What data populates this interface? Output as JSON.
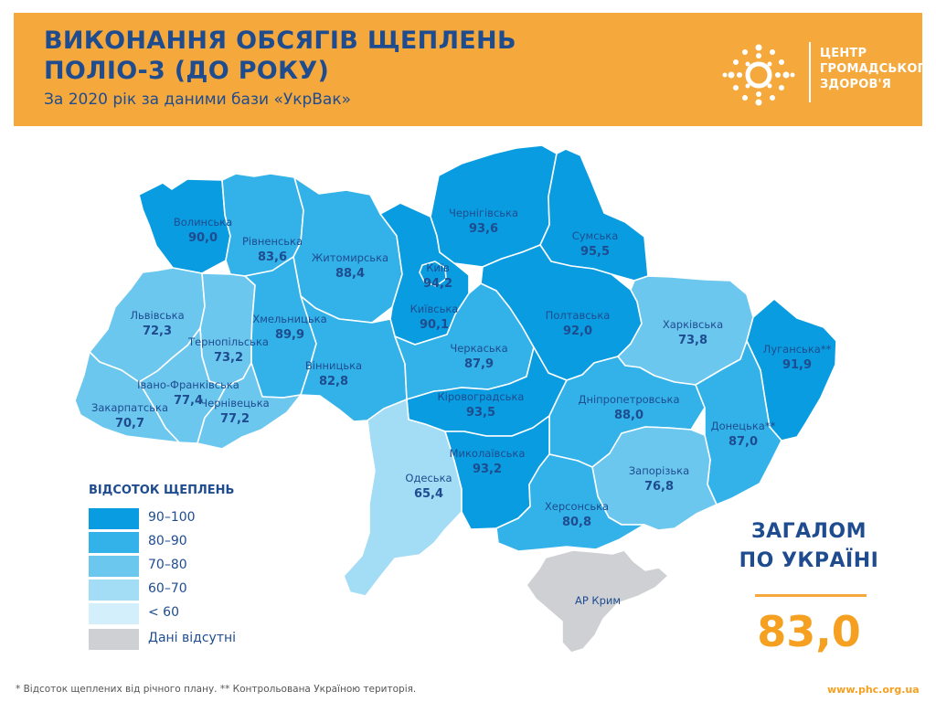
{
  "header": {
    "title_line1": "ВИКОНАННЯ ОБСЯГІВ ЩЕПЛЕНЬ",
    "title_line2": "ПОЛІО-3 (ДО РОКУ)",
    "subtitle": "За 2020 рік за даними бази «УкрВак»",
    "logo_line1": "ЦЕНТР",
    "logo_line2": "ГРОМАДСЬКОГО",
    "logo_line3": "ЗДОРОВ'Я"
  },
  "colors": {
    "header_bg": "#f5a83b",
    "title": "#1e4c8f",
    "accent": "#f5a021",
    "bin_90_100": "#0a9ce0",
    "bin_80_90": "#32b2e8",
    "bin_70_80": "#6cc7ef",
    "bin_60_70": "#a3dcf5",
    "bin_lt60": "#d3effb",
    "no_data": "#cfd0d3"
  },
  "legend": {
    "title": "ВІДСОТОК ЩЕПЛЕНЬ",
    "items": [
      {
        "label": "90–100",
        "color": "#0a9ce0"
      },
      {
        "label": "80–90",
        "color": "#32b2e8"
      },
      {
        "label": "70–80",
        "color": "#6cc7ef"
      },
      {
        "label": "60–70",
        "color": "#a3dcf5"
      },
      {
        "label": "< 60",
        "color": "#d3effb"
      },
      {
        "label": "Дані відсутні",
        "color": "#cfd0d3"
      }
    ]
  },
  "regions": [
    {
      "name": "Волинська",
      "value": "90,0",
      "bin": "90-100"
    },
    {
      "name": "Рівненська",
      "value": "83,6",
      "bin": "80-90"
    },
    {
      "name": "Житомирська",
      "value": "88,4",
      "bin": "80-90"
    },
    {
      "name": "Київ",
      "value": "94,2",
      "bin": "90-100"
    },
    {
      "name": "Київська",
      "value": "90,1",
      "bin": "90-100"
    },
    {
      "name": "Чернігівська",
      "value": "93,6",
      "bin": "90-100"
    },
    {
      "name": "Сумська",
      "value": "95,5",
      "bin": "90-100"
    },
    {
      "name": "Львівська",
      "value": "72,3",
      "bin": "70-80"
    },
    {
      "name": "Тернопільська",
      "value": "73,2",
      "bin": "70-80"
    },
    {
      "name": "Хмельницька",
      "value": "89,9",
      "bin": "80-90"
    },
    {
      "name": "Вінницька",
      "value": "82,8",
      "bin": "80-90"
    },
    {
      "name": "Черкаська",
      "value": "87,9",
      "bin": "80-90"
    },
    {
      "name": "Полтавська",
      "value": "92,0",
      "bin": "90-100"
    },
    {
      "name": "Харківська",
      "value": "73,8",
      "bin": "70-80"
    },
    {
      "name": "Луганська**",
      "value": "91,9",
      "bin": "90-100"
    },
    {
      "name": "Івано-Франківська",
      "value": "77,4",
      "bin": "70-80"
    },
    {
      "name": "Закарпатська",
      "value": "70,7",
      "bin": "70-80"
    },
    {
      "name": "Чернівецька",
      "value": "77,2",
      "bin": "70-80"
    },
    {
      "name": "Кіровоградська",
      "value": "93,5",
      "bin": "90-100"
    },
    {
      "name": "Дніпропетровська",
      "value": "88,0",
      "bin": "80-90"
    },
    {
      "name": "Донецька**",
      "value": "87,0",
      "bin": "80-90"
    },
    {
      "name": "Одеська",
      "value": "65,4",
      "bin": "60-70"
    },
    {
      "name": "Миколаївська",
      "value": "93,2",
      "bin": "90-100"
    },
    {
      "name": "Запорізька",
      "value": "76,8",
      "bin": "70-80"
    },
    {
      "name": "Херсонська",
      "value": "80,8",
      "bin": "80-90"
    },
    {
      "name": "АР Крим",
      "value": "",
      "bin": "no-data"
    }
  ],
  "total": {
    "label_line1": "ЗАГАЛОМ",
    "label_line2": "ПО УКРАЇНІ",
    "value": "83,0"
  },
  "footer": {
    "note": "* Відсоток щеплених від річного плану. ** Контрольована Україною територія.",
    "website": "www.phc.org.ua"
  }
}
